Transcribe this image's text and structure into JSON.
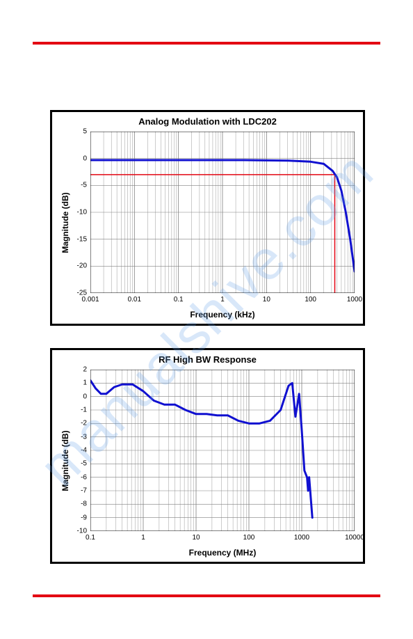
{
  "watermark_text": "manualshive.com",
  "chart1": {
    "type": "line",
    "title": "Analog Modulation with LDC202",
    "xlabel": "Frequency (kHz)",
    "ylabel": "Magnitude (dB)",
    "xscale": "log",
    "xlim_log10": [
      -3,
      3
    ],
    "ylim": [
      -25,
      5
    ],
    "ytick_step": 5,
    "xticks_log10": [
      -3,
      -2,
      -1,
      0,
      1,
      2,
      3
    ],
    "xtick_labels": [
      "0.001",
      "0.01",
      "0.1",
      "1",
      "10",
      "100",
      "1000"
    ],
    "ytick_labels": [
      "-25",
      "-20",
      "-15",
      "-10",
      "-5",
      "0",
      "5"
    ],
    "background_color": "#ffffff",
    "grid_color": "#808080",
    "border_color": "#000000",
    "series": [
      {
        "name": "response",
        "color": "#1010d0",
        "width": 3,
        "points": [
          [
            -3,
            -0.3
          ],
          [
            -2.5,
            -0.3
          ],
          [
            -2,
            -0.3
          ],
          [
            -1.5,
            -0.3
          ],
          [
            -1,
            -0.3
          ],
          [
            -0.5,
            -0.3
          ],
          [
            0,
            -0.3
          ],
          [
            0.5,
            -0.3
          ],
          [
            1,
            -0.35
          ],
          [
            1.5,
            -0.4
          ],
          [
            2,
            -0.6
          ],
          [
            2.3,
            -1.0
          ],
          [
            2.5,
            -2.3
          ],
          [
            2.6,
            -3.5
          ],
          [
            2.7,
            -6
          ],
          [
            2.8,
            -10
          ],
          [
            2.9,
            -15
          ],
          [
            3,
            -21
          ]
        ]
      }
    ],
    "reference_lines": [
      {
        "orient": "h",
        "value": -3,
        "from_x_log10": -3,
        "to_x_log10": 2.55,
        "color": "#e30613",
        "width": 1.5
      },
      {
        "orient": "v",
        "value_log10": 2.55,
        "from_y": -25,
        "to_y": -3,
        "color": "#e30613",
        "width": 1.5
      }
    ]
  },
  "chart2": {
    "type": "line",
    "title": "RF High BW Response",
    "xlabel": "Frequency (MHz)",
    "ylabel": "Magnitude (dB)",
    "xscale": "log",
    "xlim_log10": [
      -1,
      4
    ],
    "ylim": [
      -10,
      2
    ],
    "ytick_step": 1,
    "xticks_log10": [
      -1,
      0,
      1,
      2,
      3,
      4
    ],
    "xtick_labels": [
      "0.1",
      "1",
      "10",
      "100",
      "1000",
      "10000"
    ],
    "ytick_labels": [
      "-10",
      "-9",
      "-8",
      "-7",
      "-6",
      "-5",
      "-4",
      "-3",
      "-2",
      "-1",
      "0",
      "1",
      "2"
    ],
    "background_color": "#ffffff",
    "grid_color": "#808080",
    "border_color": "#000000",
    "series": [
      {
        "name": "response",
        "color": "#1010d0",
        "width": 3,
        "points": [
          [
            -1,
            1.2
          ],
          [
            -0.9,
            0.6
          ],
          [
            -0.8,
            0.2
          ],
          [
            -0.7,
            0.2
          ],
          [
            -0.55,
            0.7
          ],
          [
            -0.4,
            0.9
          ],
          [
            -0.2,
            0.9
          ],
          [
            0,
            0.4
          ],
          [
            0.2,
            -0.3
          ],
          [
            0.4,
            -0.6
          ],
          [
            0.6,
            -0.6
          ],
          [
            0.8,
            -1.0
          ],
          [
            1.0,
            -1.3
          ],
          [
            1.2,
            -1.3
          ],
          [
            1.4,
            -1.4
          ],
          [
            1.6,
            -1.4
          ],
          [
            1.8,
            -1.8
          ],
          [
            2.0,
            -2.0
          ],
          [
            2.2,
            -2.0
          ],
          [
            2.4,
            -1.8
          ],
          [
            2.6,
            -1.0
          ],
          [
            2.75,
            0.8
          ],
          [
            2.82,
            1.0
          ],
          [
            2.88,
            -1.5
          ],
          [
            2.95,
            0.2
          ],
          [
            3.0,
            -2.5
          ],
          [
            3.05,
            -5.5
          ],
          [
            3.1,
            -6.0
          ],
          [
            3.12,
            -7.0
          ],
          [
            3.14,
            -6.0
          ],
          [
            3.18,
            -8.0
          ],
          [
            3.2,
            -9.0
          ]
        ]
      }
    ],
    "reference_lines": []
  }
}
